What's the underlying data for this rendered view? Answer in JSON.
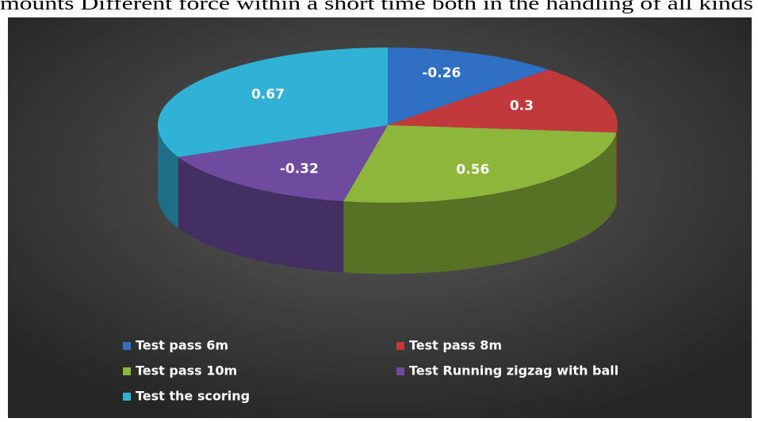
{
  "caption": "mounts Different force within a short time both in the handling of all kinds",
  "chart_data": {
    "type": "pie",
    "three_d": true,
    "categories": [
      "Test pass 6m",
      "Test pass 8m",
      "Test pass 10m",
      "Test Running zigzag with ball",
      "Test the scoring"
    ],
    "values": [
      -0.26,
      0.3,
      0.56,
      -0.32,
      0.67
    ],
    "colors": [
      "#2f6fc4",
      "#c2393c",
      "#8db63b",
      "#6e4b9e",
      "#30b1d6"
    ],
    "legend": "bottom"
  }
}
